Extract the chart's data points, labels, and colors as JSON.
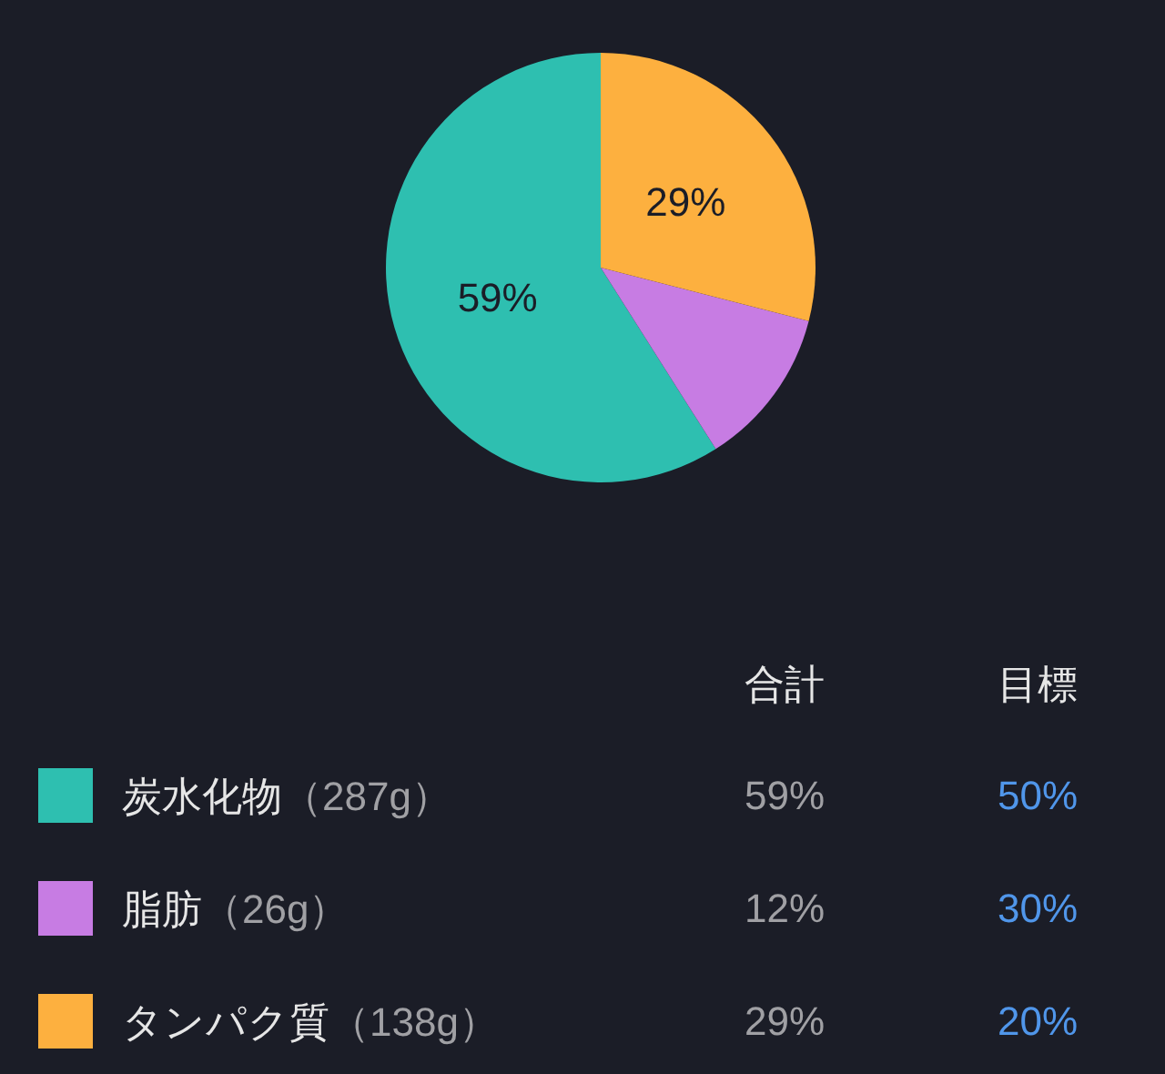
{
  "chart_data": [
    {
      "type": "pie",
      "categories": [
        "炭水化物（287g）",
        "脂肪（26g）",
        "タンパク質（138g）"
      ],
      "values": [
        59,
        12,
        29
      ],
      "colors": [
        "#2ebfb0",
        "#c77ce3",
        "#fdb03f"
      ],
      "value_labels": [
        "59%",
        null,
        "29%"
      ],
      "legend": "bottom"
    },
    {
      "type": "other",
      "annotations": [
        "合計",
        "目標",
        "59%",
        "50%",
        "12%",
        "30%",
        "29%",
        "20%"
      ]
    }
  ]
}
